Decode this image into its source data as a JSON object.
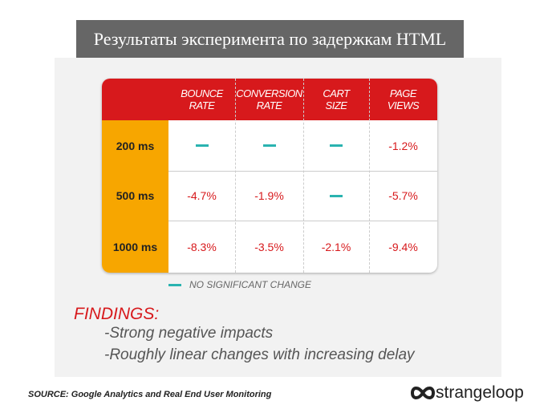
{
  "header": {
    "title": "Результаты эксперимента по задержкам HTML"
  },
  "table": {
    "columns": [
      [
        "BOUNCE",
        "RATE"
      ],
      [
        "CONVERSION",
        "RATE"
      ],
      [
        "CART",
        "SIZE"
      ],
      [
        "PAGE",
        "VIEWS"
      ]
    ],
    "rows": [
      {
        "label": "200 ms",
        "cells": [
          null,
          null,
          null,
          "-1.2%"
        ]
      },
      {
        "label": "500 ms",
        "cells": [
          "-4.7%",
          "-1.9%",
          null,
          "-5.7%"
        ]
      },
      {
        "label": "1000 ms",
        "cells": [
          "-8.3%",
          "-3.5%",
          "-2.1%",
          "-9.4%"
        ]
      }
    ]
  },
  "legend": {
    "label": "NO SIGNIFICANT CHANGE"
  },
  "findings": {
    "title": "FINDINGS:",
    "items": [
      "-Strong negative impacts",
      "-Roughly linear changes with increasing delay"
    ]
  },
  "source": "SOURCE:  Google Analytics and Real End User Monitoring",
  "logo": "strangeloop"
}
